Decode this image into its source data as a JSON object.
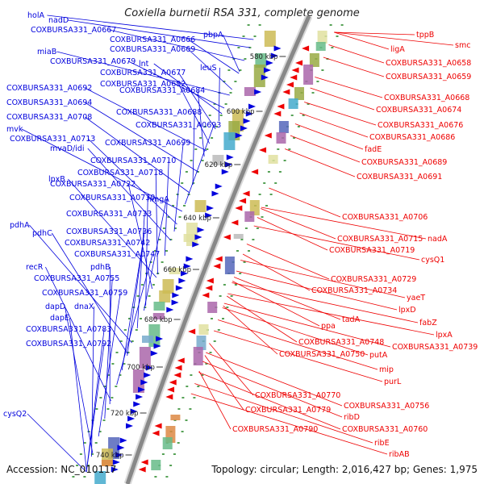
{
  "title": "Coxiella burnetii RSA 331, complete genome",
  "accession": "Accession: NC_010117",
  "topology": "Topology: circular; Length: 2,016,427 bp; Genes: 1,975",
  "colors": {
    "forward": "#0000dd",
    "reverse": "#ee0000",
    "backbone": "#888888",
    "tick": "#2a8a2a"
  },
  "kbp_ticks": [
    "580 kbp",
    "600 kbp",
    "620 kbp",
    "640 kbp",
    "660 kbp",
    "680 kbp",
    "700 kbp",
    "720 kbp",
    "740 kbp"
  ],
  "forward_genes": [
    "holA",
    "nadD",
    "COXBURSA331_A0667",
    "COXBURSA331_A0666",
    "pbpA",
    "COXBURSA331_A0669",
    "miaB",
    "COXBURSA331_A0679",
    "lnt",
    "leuS",
    "COXBURSA331_A0677",
    "COXBURSA331_A0682",
    "COXBURSA331_A0692",
    "COXBURSA331_A0684",
    "COXBURSA331_A0694",
    "COXBURSA331_A0688",
    "COXBURSA331_A0708",
    "COXBURSA331_A0693",
    "mvk",
    "COXBURSA331_A0713",
    "COXBURSA331_A0699",
    "mvaD/idi",
    "COXBURSA331_A0710",
    "lpxB",
    "COXBURSA331_A0718",
    "COXBURSA331_A0722",
    "COXBURSA331_A0730",
    "hmgA",
    "COXBURSA331_A0733",
    "pdhA",
    "pdhC",
    "COXBURSA331_A0736",
    "COXBURSA331_A0742",
    "COXBURSA331_A0747",
    "recR",
    "pdhB",
    "COXBURSA331_A0755",
    "COXBURSA331_A0759",
    "dapD",
    "dnaX",
    "dapE",
    "COXBURSA331_A0783",
    "COXBURSA331_A0792",
    "cysQ2"
  ],
  "reverse_genes": [
    "tppB",
    "smc",
    "ligA",
    "COXBURSA331_A0658",
    "COXBURSA331_A0659",
    "COXBURSA331_A0668",
    "COXBURSA331_A0674",
    "COXBURSA331_A0676",
    "COXBURSA331_A0686",
    "fadE",
    "COXBURSA331_A0689",
    "COXBURSA331_A0691",
    "COXBURSA331_A0706",
    "COXBURSA331_A0715",
    "nadA",
    "COXBURSA331_A0719",
    "cysQ1",
    "COXBURSA331_A0729",
    "COXBURSA331_A0734",
    "yaeT",
    "lpxD",
    "fabZ",
    "lpxA",
    "tadA",
    "COXBURSA331_A0739",
    "ppa",
    "COXBURSA331_A0748",
    "putA",
    "COXBURSA331_A0750",
    "mip",
    "purL",
    "COXBURSA331_A0770",
    "COXBURSA331_A0756",
    "COXBURSA331_A0779",
    "ribD",
    "COXBURSA331_A0760",
    "COXBURSA331_A0790",
    "ribE",
    "ribAB"
  ]
}
